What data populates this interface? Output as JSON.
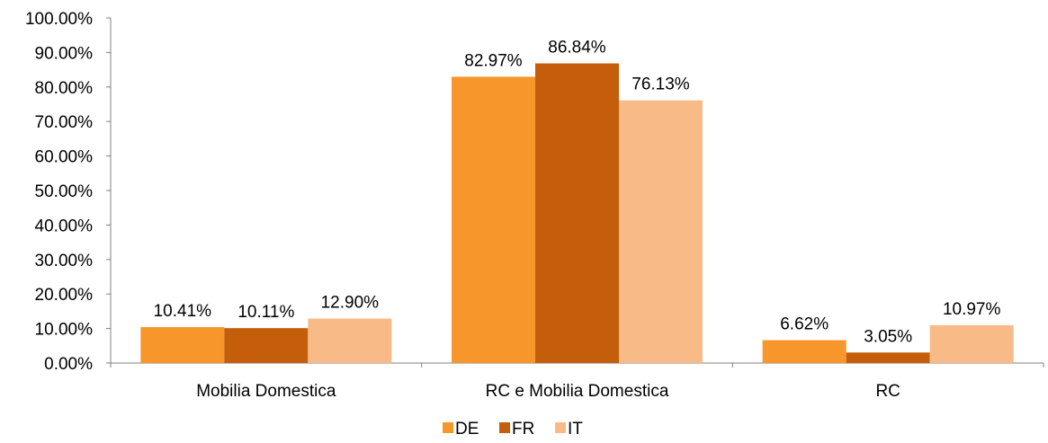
{
  "chart_data": {
    "type": "bar",
    "title": "",
    "xlabel": "",
    "ylabel": "",
    "categories": [
      "Mobilia Domestica",
      "RC e Mobilia Domestica",
      "RC"
    ],
    "series": [
      {
        "name": "DE",
        "color": "#F7962B",
        "values": [
          10.41,
          82.97,
          6.62
        ],
        "labels": [
          "10.41%",
          "82.97%",
          "6.62%"
        ]
      },
      {
        "name": "FR",
        "color": "#C55E0A",
        "values": [
          10.11,
          86.84,
          3.05
        ],
        "labels": [
          "10.11%",
          "86.84%",
          "3.05%"
        ]
      },
      {
        "name": "IT",
        "color": "#F8BB88",
        "values": [
          12.9,
          76.13,
          10.97
        ],
        "labels": [
          "12.90%",
          "76.13%",
          "10.97%"
        ]
      }
    ],
    "ylim": [
      0,
      100
    ],
    "yticks": [
      "0.00%",
      "10.00%",
      "20.00%",
      "30.00%",
      "40.00%",
      "50.00%",
      "60.00%",
      "70.00%",
      "80.00%",
      "90.00%",
      "100.00%"
    ],
    "grid": false,
    "legend": "bottom-center"
  }
}
